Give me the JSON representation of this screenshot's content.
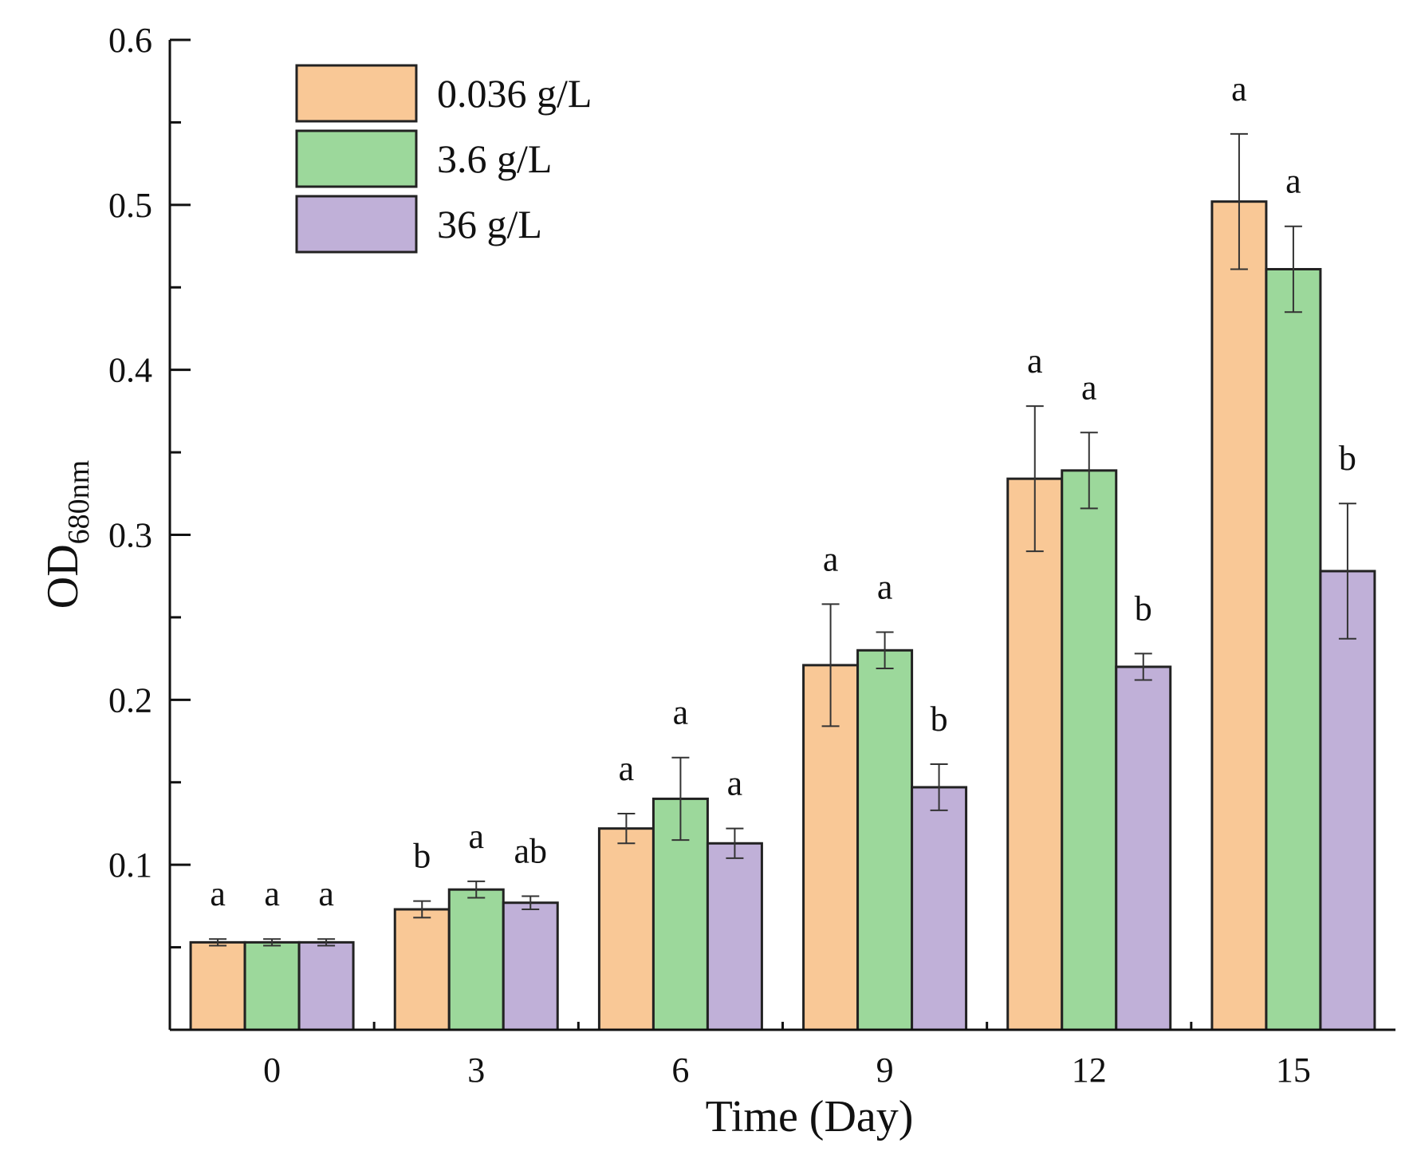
{
  "chart_data": {
    "type": "bar",
    "title": "",
    "xlabel": "Time (Day)",
    "ylabel": "OD",
    "ylabel_subscript": "680nm",
    "ylim": [
      0,
      0.6
    ],
    "yticks": [
      "0.1",
      "0.2",
      "0.3",
      "0.4",
      "0.5",
      "0.6"
    ],
    "ytick_values": [
      0.1,
      0.2,
      0.3,
      0.4,
      0.5,
      0.6
    ],
    "categories": [
      "0",
      "3",
      "6",
      "9",
      "12",
      "15"
    ],
    "legend_position": "top-left",
    "grid": false,
    "series": [
      {
        "name": "0.036 g/L",
        "color": "#f9c896",
        "values": [
          0.053,
          0.073,
          0.122,
          0.221,
          0.334,
          0.502
        ],
        "errors": [
          0.002,
          0.005,
          0.009,
          0.037,
          0.044,
          0.041
        ],
        "letters": [
          "a",
          "b",
          "a",
          "a",
          "a",
          "a"
        ]
      },
      {
        "name": "3.6 g/L",
        "color": "#9cd89b",
        "values": [
          0.053,
          0.085,
          0.14,
          0.23,
          0.339,
          0.461
        ],
        "errors": [
          0.002,
          0.005,
          0.025,
          0.011,
          0.023,
          0.026
        ],
        "letters": [
          "a",
          "a",
          "a",
          "a",
          "a",
          "a"
        ]
      },
      {
        "name": "36 g/L",
        "color": "#c0b0d8",
        "values": [
          0.053,
          0.077,
          0.113,
          0.147,
          0.22,
          0.278
        ],
        "errors": [
          0.002,
          0.004,
          0.009,
          0.014,
          0.008,
          0.041
        ],
        "letters": [
          "a",
          "ab",
          "a",
          "b",
          "b",
          "b"
        ]
      }
    ]
  }
}
